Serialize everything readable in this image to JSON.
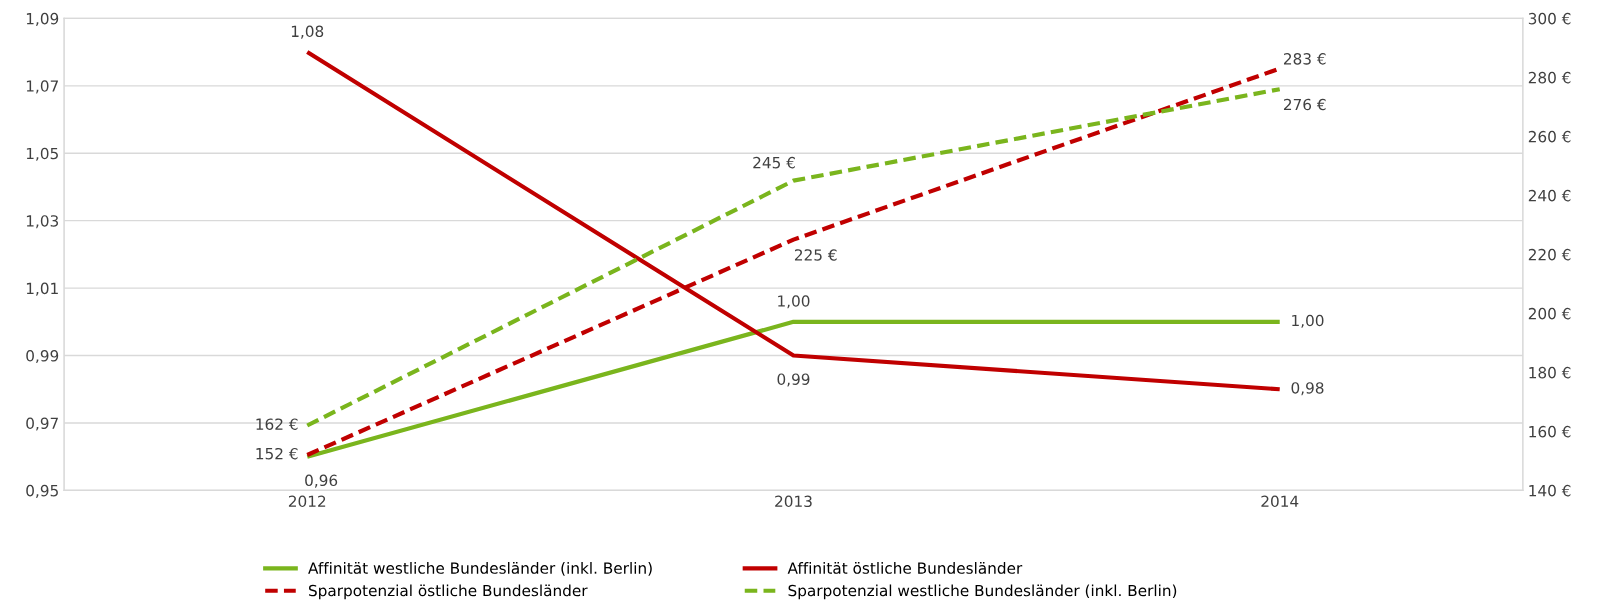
{
  "chart_data": {
    "type": "line",
    "categories": [
      "2012",
      "2013",
      "2014"
    ],
    "series": [
      {
        "name": "Affinität westliche Bundesländer (inkl. Berlin)",
        "color": "#7ab51d",
        "values": [
          0.96,
          1.0,
          1.0
        ],
        "value_labels": [
          "0,96",
          "1,00",
          "1,00"
        ],
        "line_style": "solid"
      },
      {
        "name": "Sparpotenzial östliche Bundesländer",
        "color": "#c00000",
        "values": [
          152,
          225,
          283
        ],
        "value_labels": [
          "152 €",
          "225 €",
          "283 €"
        ],
        "line_style": "dashed",
        "axis": "y2"
      },
      {
        "name": "Affinität östliche Bundesländer",
        "color": "#c00000",
        "values": [
          1.08,
          0.99,
          0.98
        ],
        "value_labels": [
          "1,08",
          "0,99",
          "0,98"
        ],
        "line_style": "solid"
      },
      {
        "name": "Sparpotenzial westliche Bundesländer (inkl. Berlin)",
        "color": "#7ab51d",
        "values": [
          162,
          245,
          276
        ],
        "value_labels": [
          "162 €",
          "245 €",
          "276 €"
        ],
        "line_style": "dashed",
        "axis": "y2"
      }
    ],
    "ylim": [
      0.95,
      1.09
    ],
    "yticks": [
      {
        "value": 0.95,
        "label": "0,95"
      },
      {
        "value": 0.97,
        "label": "0,97"
      },
      {
        "value": 0.99,
        "label": "0,99"
      },
      {
        "value": 1.01,
        "label": "1,01"
      },
      {
        "value": 1.03,
        "label": "1,03"
      },
      {
        "value": 1.05,
        "label": "1,05"
      },
      {
        "value": 1.07,
        "label": "1,07"
      },
      {
        "value": 1.09,
        "label": "1,09"
      }
    ],
    "y2lim": [
      140,
      300
    ],
    "y2ticks": [
      {
        "value": 140,
        "label": "140 €"
      },
      {
        "value": 160,
        "label": "160 €"
      },
      {
        "value": 180,
        "label": "180 €"
      },
      {
        "value": 200,
        "label": "200 €"
      },
      {
        "value": 220,
        "label": "220 €"
      },
      {
        "value": 240,
        "label": "240 €"
      },
      {
        "value": 260,
        "label": "260 €"
      },
      {
        "value": 280,
        "label": "280 €"
      },
      {
        "value": 300,
        "label": "300 €"
      }
    ],
    "grid": "y",
    "legend": "bottom",
    "marker": "none"
  }
}
